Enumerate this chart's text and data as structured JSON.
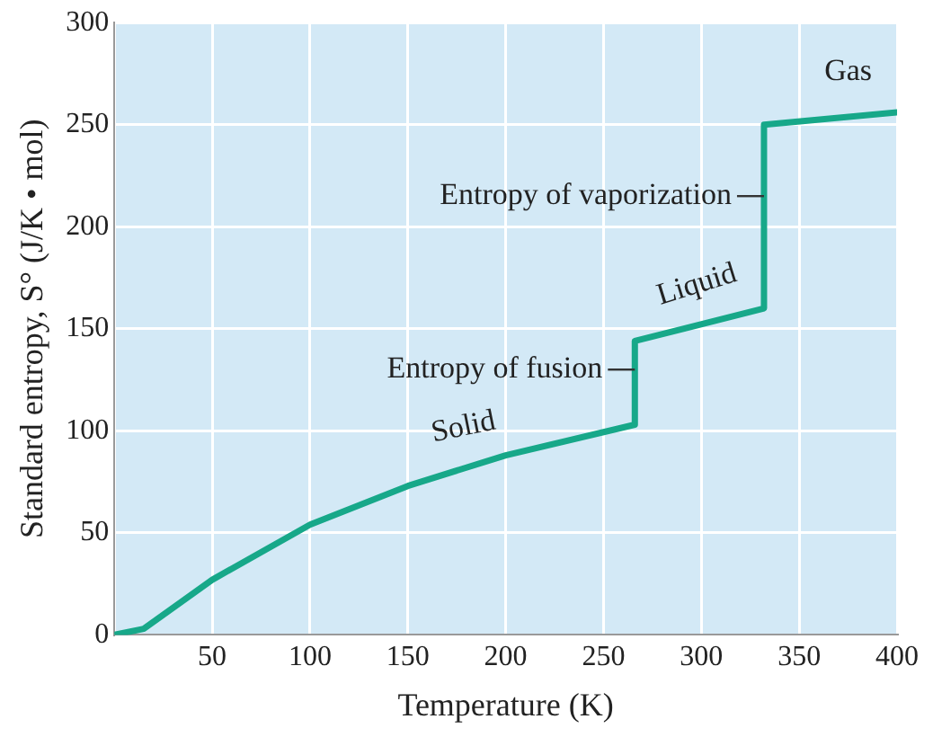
{
  "chart_data": {
    "type": "line",
    "xlabel": "Temperature (K)",
    "ylabel": "Standard entropy, S° (J/K • mol)",
    "x": [
      0,
      15,
      50,
      100,
      150,
      200,
      266,
      266,
      332,
      332,
      400
    ],
    "series": [
      {
        "color": "#17a889",
        "values": [
          0,
          3,
          27,
          54,
          73,
          88,
          103,
          144,
          160,
          250,
          256
        ]
      }
    ],
    "xlim": [
      0,
      400
    ],
    "xticks": [
      {
        "value": 0,
        "label": null
      },
      50,
      100,
      150,
      200,
      250,
      300,
      350,
      400
    ],
    "ylim": [
      0,
      300
    ],
    "yticks": [
      0,
      50,
      100,
      150,
      200,
      250,
      300
    ],
    "grid": true,
    "legend": false,
    "marker": "none",
    "line_style": "solid",
    "annotations": [
      {
        "text": "Gas",
        "x": 375,
        "y": 256
      },
      {
        "text": "Liquid",
        "x": 300,
        "y": 152
      },
      {
        "text": "Entropy of vaporization",
        "x": 332,
        "y": 215
      },
      {
        "text": "Entropy of fusion",
        "x": 266,
        "y": 130
      },
      {
        "text": "Solid",
        "x": 180,
        "y": 82
      }
    ]
  }
}
